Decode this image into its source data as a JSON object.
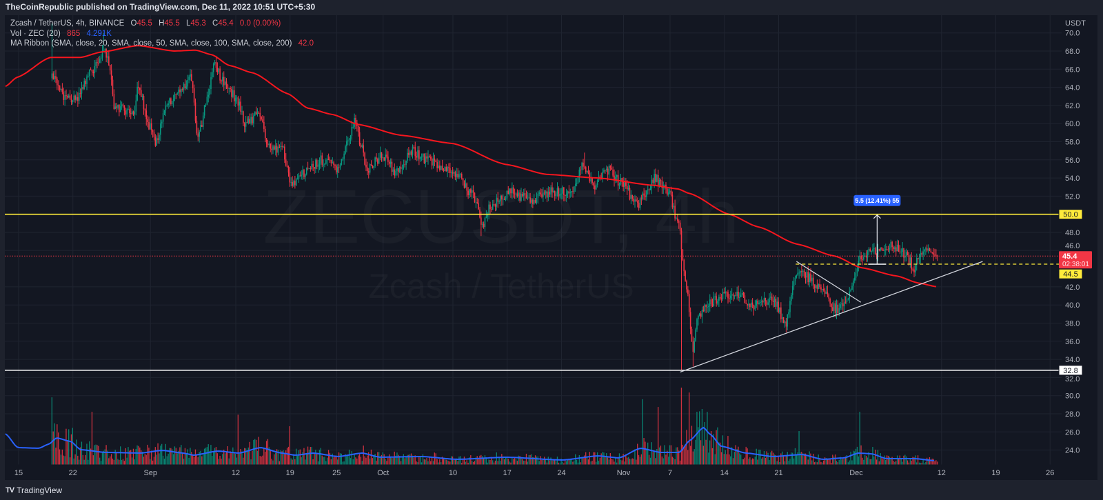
{
  "header": {
    "publisher_text": "TheCoinRepublic published on TradingView.com, Dec 11, 2022 10:51 UTC+5:30"
  },
  "legend": {
    "symbol": "Zcash / TetherUS, 4h, BINANCE",
    "ohlc": [
      {
        "k": "O",
        "v": "45.5"
      },
      {
        "k": "H",
        "v": "45.5"
      },
      {
        "k": "L",
        "v": "45.3"
      },
      {
        "k": "C",
        "v": "45.4"
      }
    ],
    "change": "0.0 (0.00%)",
    "volume": {
      "label": "Vol · ZEC (20)",
      "value": "865",
      "ma": "4.291K"
    },
    "ma_ribbon": {
      "label": "MA Ribbon (SMA, close, 20, SMA, close, 50, SMA, close, 100, SMA, close, 200)",
      "value": "42.0"
    }
  },
  "watermark": {
    "symbol": "ZECUSDT, 4h",
    "name": "Zcash / TetherUS"
  },
  "footer": {
    "logo_text": "TradingView"
  },
  "colors": {
    "up": "#089981",
    "down": "#f23645",
    "sma": "#f7161e",
    "volume_ma": "#2962ff",
    "support_line": "#ffeb3b",
    "base_line": "#ffffff",
    "measure": "#2962ff",
    "grid": "#1f2430"
  },
  "chart_data": {
    "type": "candlestick",
    "title": "Zcash / TetherUS, 4h, BINANCE",
    "x_unit": "days since Aug 15, 2022",
    "interval_hours": 4,
    "y_unit": "USDT",
    "ylim": [
      24,
      70
    ],
    "y_ticks": [
      24,
      26,
      28,
      30,
      32,
      34,
      36,
      38,
      40,
      42,
      46,
      48,
      52,
      54,
      56,
      58,
      60,
      62,
      64,
      66,
      68,
      70
    ],
    "x_ticks": [
      {
        "day": 0,
        "label": "15"
      },
      {
        "day": 7,
        "label": "22"
      },
      {
        "day": 17,
        "label": "Sep"
      },
      {
        "day": 28,
        "label": "12"
      },
      {
        "day": 35,
        "label": "19"
      },
      {
        "day": 41,
        "label": "25"
      },
      {
        "day": 47,
        "label": "Oct"
      },
      {
        "day": 56,
        "label": "10"
      },
      {
        "day": 63,
        "label": "17"
      },
      {
        "day": 70,
        "label": "24"
      },
      {
        "day": 78,
        "label": "Nov"
      },
      {
        "day": 84,
        "label": "7"
      },
      {
        "day": 91,
        "label": "14"
      },
      {
        "day": 98,
        "label": "21"
      },
      {
        "day": 108,
        "label": "Dec"
      },
      {
        "day": 119,
        "label": "12"
      },
      {
        "day": 126,
        "label": "19"
      },
      {
        "day": 133,
        "label": "26"
      }
    ],
    "close_path": [
      [
        4.3,
        65
      ],
      [
        6,
        63
      ],
      [
        7.4,
        62.5
      ],
      [
        9.6,
        66
      ],
      [
        10.9,
        68
      ],
      [
        11.6,
        67
      ],
      [
        12.3,
        62
      ],
      [
        13.6,
        61.5
      ],
      [
        14.8,
        61
      ],
      [
        15.4,
        64.5
      ],
      [
        16.7,
        60
      ],
      [
        17.6,
        58
      ],
      [
        19.4,
        62.5
      ],
      [
        21.2,
        64
      ],
      [
        22.2,
        65.5
      ],
      [
        23.1,
        58
      ],
      [
        24.1,
        62
      ],
      [
        25.2,
        66.5
      ],
      [
        26.5,
        64.5
      ],
      [
        28.3,
        62.5
      ],
      [
        29.2,
        60
      ],
      [
        30.9,
        61
      ],
      [
        32.5,
        57
      ],
      [
        34,
        57.5
      ],
      [
        35.2,
        53
      ],
      [
        36.7,
        54.5
      ],
      [
        38.9,
        56
      ],
      [
        41.2,
        55
      ],
      [
        42.5,
        58
      ],
      [
        43.4,
        60.5
      ],
      [
        44,
        58
      ],
      [
        45,
        55
      ],
      [
        46.9,
        56.5
      ],
      [
        48.7,
        54.5
      ],
      [
        50.8,
        57
      ],
      [
        52.7,
        56
      ],
      [
        54.9,
        55
      ],
      [
        56.7,
        54.5
      ],
      [
        58,
        52.5
      ],
      [
        59.2,
        51.5
      ],
      [
        59.6,
        48.5
      ],
      [
        60.9,
        51
      ],
      [
        63.4,
        52.5
      ],
      [
        66,
        51.5
      ],
      [
        68.7,
        52.5
      ],
      [
        71.4,
        52.5
      ],
      [
        72.7,
        55.5
      ],
      [
        74.2,
        53
      ],
      [
        75.8,
        55
      ],
      [
        77.6,
        53.5
      ],
      [
        79.8,
        51
      ],
      [
        82,
        54
      ],
      [
        83.8,
        52.5
      ],
      [
        85.2,
        48.5
      ],
      [
        85.6,
        45
      ],
      [
        86.2,
        41.5
      ],
      [
        86.9,
        35
      ],
      [
        87.6,
        38.5
      ],
      [
        88.9,
        40
      ],
      [
        90.7,
        41
      ],
      [
        92.4,
        41.5
      ],
      [
        94.8,
        40
      ],
      [
        97.3,
        40.5
      ],
      [
        98.9,
        38
      ],
      [
        100,
        42.5
      ],
      [
        100.7,
        44
      ],
      [
        101.8,
        43
      ],
      [
        103.8,
        41.5
      ],
      [
        105.3,
        39.5
      ],
      [
        106.8,
        40.2
      ],
      [
        107.8,
        43
      ],
      [
        108.7,
        45.5
      ],
      [
        109.8,
        45.8
      ],
      [
        111.1,
        46
      ],
      [
        112.4,
        46.5
      ],
      [
        113.6,
        46
      ],
      [
        114.5,
        45.5
      ],
      [
        115.4,
        44
      ],
      [
        116.3,
        45.8
      ],
      [
        117.2,
        46
      ],
      [
        118.5,
        45.4
      ]
    ],
    "wick_extremes": [
      {
        "day": 4.3,
        "high": 71
      },
      {
        "day": 10.9,
        "high": 70
      },
      {
        "day": 59.6,
        "low": 47.6
      },
      {
        "day": 72.9,
        "high": 56.8
      },
      {
        "day": 85.5,
        "low": 32.8
      },
      {
        "day": 86.9,
        "low": 33.2
      },
      {
        "day": 112.4,
        "high": 47.2
      }
    ],
    "sma_200": [
      [
        -1.7,
        64.1
      ],
      [
        -0.2,
        65.1
      ],
      [
        4.1,
        67.3
      ],
      [
        8,
        67.3
      ],
      [
        10.7,
        67.9
      ],
      [
        15.4,
        68.6
      ],
      [
        20.1,
        68
      ],
      [
        22.8,
        68.1
      ],
      [
        24.9,
        67.6
      ],
      [
        27.2,
        66.4
      ],
      [
        30.2,
        65.6
      ],
      [
        34.7,
        63.3
      ],
      [
        37.3,
        61.7
      ],
      [
        40.5,
        61
      ],
      [
        43.8,
        59.9
      ],
      [
        49.4,
        58.7
      ],
      [
        56,
        57.8
      ],
      [
        62.8,
        55.5
      ],
      [
        68.1,
        54.4
      ],
      [
        74.7,
        54
      ],
      [
        81.8,
        53.2
      ],
      [
        85,
        52.8
      ],
      [
        86.5,
        52.3
      ],
      [
        91.6,
        50
      ],
      [
        95.4,
        48.6
      ],
      [
        100.4,
        46.7
      ],
      [
        105.2,
        45.4
      ],
      [
        108.7,
        44.1
      ],
      [
        113.2,
        43.2
      ],
      [
        116.1,
        42.4
      ],
      [
        118.5,
        42
      ]
    ],
    "volume_ma_k": [
      [
        -1.7,
        32.2
      ],
      [
        -0.1,
        17.9
      ],
      [
        2.6,
        17.2
      ],
      [
        3.9,
        21.5
      ],
      [
        4.9,
        27.9
      ],
      [
        6.7,
        24.3
      ],
      [
        8,
        15.7
      ],
      [
        11.2,
        12.9
      ],
      [
        15.7,
        12.2
      ],
      [
        18.5,
        15
      ],
      [
        21.2,
        12.2
      ],
      [
        22.6,
        10
      ],
      [
        25.7,
        14.3
      ],
      [
        28.4,
        12.2
      ],
      [
        31.2,
        17.9
      ],
      [
        33.9,
        12.2
      ],
      [
        35.7,
        10
      ],
      [
        38,
        12.2
      ],
      [
        41.2,
        8.6
      ],
      [
        44.3,
        12.2
      ],
      [
        46.6,
        7.9
      ],
      [
        52,
        8.6
      ],
      [
        56.5,
        5.7
      ],
      [
        62.9,
        7.9
      ],
      [
        70.1,
        5
      ],
      [
        74.7,
        9.3
      ],
      [
        77.4,
        7.2
      ],
      [
        80.2,
        17.2
      ],
      [
        82.8,
        12.9
      ],
      [
        85.2,
        12.9
      ],
      [
        86.5,
        25
      ],
      [
        88.3,
        38.6
      ],
      [
        89.2,
        31.5
      ],
      [
        90.6,
        19.3
      ],
      [
        93.8,
        12.2
      ],
      [
        97.3,
        8.6
      ],
      [
        101,
        10.7
      ],
      [
        103.7,
        5.7
      ],
      [
        106.4,
        7.2
      ],
      [
        108.3,
        12.2
      ],
      [
        110,
        11.4
      ],
      [
        111.9,
        6.4
      ],
      [
        115.6,
        6.4
      ],
      [
        118.2,
        4.3
      ]
    ],
    "volume_spikes_k": [
      [
        4.3,
        70
      ],
      [
        9.5,
        55
      ],
      [
        28.3,
        52
      ],
      [
        35,
        40
      ],
      [
        80.5,
        68
      ],
      [
        82.5,
        60
      ],
      [
        85.5,
        80
      ],
      [
        86.4,
        75
      ],
      [
        87.5,
        55
      ],
      [
        100.7,
        35
      ],
      [
        108.5,
        55
      ]
    ],
    "horizontal_levels": [
      {
        "name": "resistance",
        "price": 50.0,
        "label": "50.0",
        "style": "solid",
        "color": "#ffeb3b"
      },
      {
        "name": "support",
        "price": 32.8,
        "label": "32.8",
        "style": "solid",
        "color": "#ffffff"
      },
      {
        "name": "breakout",
        "price": 44.5,
        "label": "44.5",
        "style": "dashed",
        "color": "#ffeb3b",
        "from_day": 100.2
      }
    ],
    "current_price": {
      "price": 45.4,
      "label": "45.4",
      "countdown": "02:38:01"
    },
    "trendlines": [
      {
        "name": "ascending",
        "from": [
          85.3,
          32.6
        ],
        "to": [
          124.3,
          44.8
        ]
      },
      {
        "name": "descending",
        "from": [
          100.3,
          44.8
        ],
        "to": [
          108.6,
          40.3
        ]
      }
    ],
    "measure": {
      "day": 110.7,
      "from": 44.5,
      "to": 50.0,
      "label": "5.5 (12.41%) 55"
    }
  }
}
